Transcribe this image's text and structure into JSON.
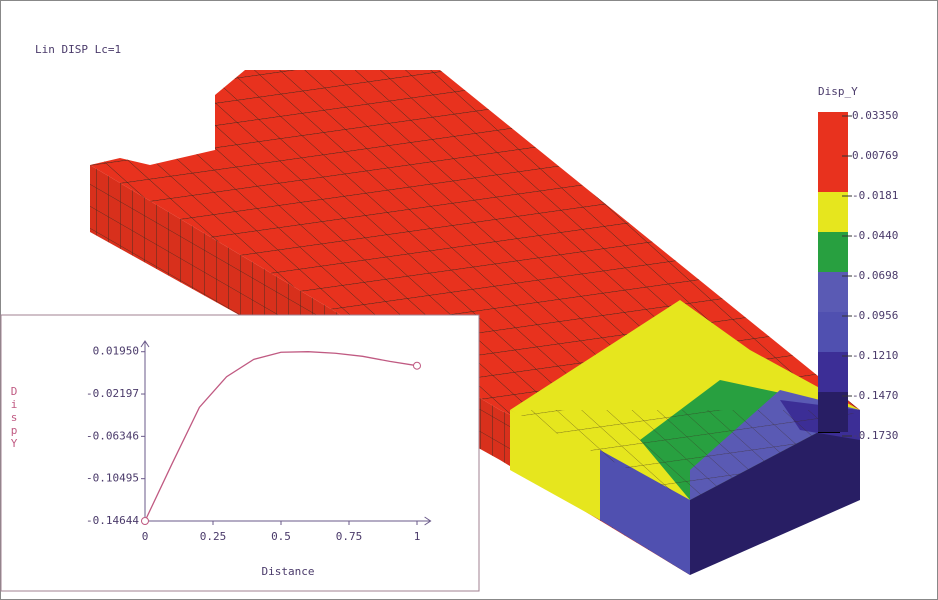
{
  "header": {
    "title": "Lin DISP Lc=1"
  },
  "legend": {
    "title": "Disp_Y",
    "labels": [
      "0.03350",
      "0.00769",
      "-0.0181",
      "-0.0440",
      "-0.0698",
      "-0.0956",
      "-0.1210",
      "-0.1470",
      "-0.1730"
    ],
    "colors": [
      "#e8321e",
      "#e8321e",
      "#e6e61e",
      "#28a040",
      "#5a5ab4",
      "#5050b0",
      "#3c2e96",
      "#281e64"
    ]
  },
  "chart_data": {
    "type": "line",
    "xlabel": "Distance",
    "ylabel": "DispY",
    "x": [
      0,
      0.1,
      0.2,
      0.3,
      0.4,
      0.5,
      0.6,
      0.7,
      0.8,
      0.9,
      1
    ],
    "series": [
      {
        "color": "#c05a82",
        "values": [
          -0.14644,
          -0.09,
          -0.035,
          -0.005,
          0.012,
          0.019,
          0.0195,
          0.018,
          0.015,
          0.01,
          0.0058
        ]
      }
    ],
    "xlim": [
      0,
      1.05
    ],
    "ylim": [
      -0.14644,
      0.03
    ],
    "xticks": [
      0,
      0.25,
      0.5,
      0.75,
      1
    ],
    "yticks": [
      {
        "value": 0.0195,
        "label": "0.01950"
      },
      {
        "value": -0.02197,
        "label": "-0.02197"
      },
      {
        "value": -0.06346,
        "label": "-0.06346"
      },
      {
        "value": -0.10495,
        "label": "-0.10495"
      },
      {
        "value": -0.14644,
        "label": "-0.14644"
      }
    ]
  }
}
